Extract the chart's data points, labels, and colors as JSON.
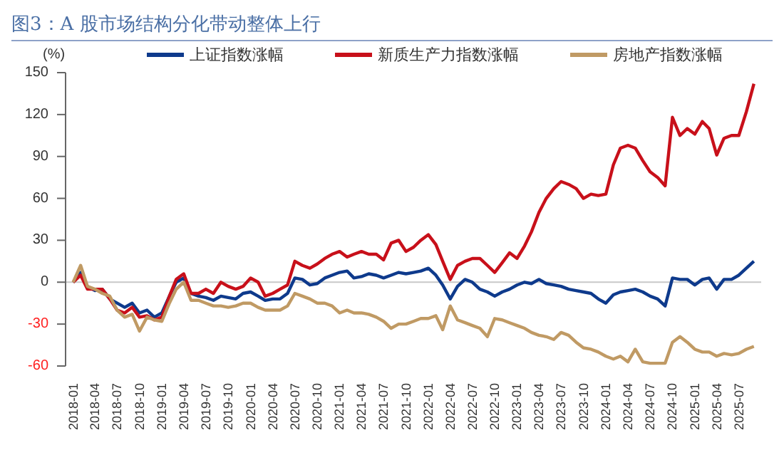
{
  "chart_data": {
    "type": "line",
    "title": "图3：A 股市场结构分化带动整体上行",
    "ylabel": "(%)",
    "x": [
      "2018-01",
      "2018-02",
      "2018-03",
      "2018-04",
      "2018-05",
      "2018-06",
      "2018-07",
      "2018-08",
      "2018-09",
      "2018-10",
      "2018-11",
      "2018-12",
      "2019-01",
      "2019-02",
      "2019-03",
      "2019-04",
      "2019-05",
      "2019-06",
      "2019-07",
      "2019-08",
      "2019-09",
      "2019-10",
      "2019-11",
      "2019-12",
      "2020-01",
      "2020-02",
      "2020-03",
      "2020-04",
      "2020-05",
      "2020-06",
      "2020-07",
      "2020-08",
      "2020-09",
      "2020-10",
      "2020-11",
      "2020-12",
      "2021-01",
      "2021-02",
      "2021-03",
      "2021-04",
      "2021-05",
      "2021-06",
      "2021-07",
      "2021-08",
      "2021-09",
      "2021-10",
      "2021-11",
      "2021-12",
      "2022-01",
      "2022-02",
      "2022-03",
      "2022-04",
      "2022-05",
      "2022-06",
      "2022-07",
      "2022-08",
      "2022-09",
      "2022-10",
      "2022-11",
      "2022-12",
      "2023-01",
      "2023-02",
      "2023-03",
      "2023-04",
      "2023-05",
      "2023-06",
      "2023-07",
      "2023-08",
      "2023-09",
      "2023-10",
      "2023-11",
      "2023-12",
      "2024-01",
      "2024-02",
      "2024-03",
      "2024-04",
      "2024-05",
      "2024-06",
      "2024-07",
      "2024-08",
      "2024-09",
      "2024-10",
      "2024-11",
      "2024-12",
      "2025-01",
      "2025-02",
      "2025-03",
      "2025-04",
      "2025-05",
      "2025-06",
      "2025-07",
      "2025-08",
      "2025-09"
    ],
    "series": [
      {
        "name": "上证指数涨幅",
        "color": "#0e3a8c",
        "values": [
          0,
          7,
          -3,
          -6,
          -5,
          -12,
          -15,
          -18,
          -15,
          -22,
          -20,
          -25,
          -22,
          -10,
          0,
          3,
          -8,
          -10,
          -11,
          -13,
          -10,
          -11,
          -12,
          -8,
          -7,
          -10,
          -13,
          -12,
          -12,
          -8,
          3,
          2,
          -2,
          -1,
          3,
          5,
          7,
          8,
          3,
          4,
          6,
          5,
          3,
          5,
          7,
          6,
          7,
          8,
          10,
          5,
          -2,
          -12,
          -3,
          2,
          0,
          -5,
          -7,
          -10,
          -7,
          -5,
          -2,
          0,
          -1,
          2,
          -1,
          -2,
          -3,
          -5,
          -6,
          -7,
          -8,
          -12,
          -15,
          -9,
          -7,
          -6,
          -5,
          -7,
          -10,
          -12,
          -17,
          3,
          2,
          2,
          -2,
          2,
          3,
          -5,
          2,
          2,
          5,
          10,
          15
        ]
      },
      {
        "name": "新质生产力指数涨幅",
        "color": "#c8101a",
        "values": [
          0,
          5,
          -5,
          -5,
          -5,
          -12,
          -20,
          -22,
          -18,
          -25,
          -24,
          -27,
          -25,
          -10,
          2,
          6,
          -8,
          -8,
          -5,
          -8,
          0,
          -3,
          -5,
          -3,
          3,
          0,
          -10,
          -8,
          -5,
          -2,
          15,
          12,
          10,
          13,
          17,
          20,
          22,
          18,
          20,
          22,
          20,
          20,
          16,
          28,
          30,
          22,
          25,
          30,
          34,
          27,
          15,
          2,
          12,
          15,
          17,
          17,
          12,
          7,
          14,
          21,
          17,
          26,
          36,
          50,
          60,
          67,
          72,
          70,
          67,
          60,
          63,
          62,
          63,
          84,
          96,
          98,
          96,
          87,
          79,
          75,
          69,
          118,
          105,
          110,
          106,
          115,
          110,
          91,
          103,
          105,
          105,
          122,
          142
        ]
      },
      {
        "name": "房地产指数涨幅",
        "color": "#c09a64",
        "values": [
          0,
          12,
          -3,
          -5,
          -8,
          -10,
          -20,
          -25,
          -23,
          -35,
          -25,
          -27,
          -28,
          -15,
          -5,
          0,
          -13,
          -13,
          -15,
          -17,
          -17,
          -18,
          -17,
          -15,
          -15,
          -18,
          -20,
          -20,
          -20,
          -17,
          -8,
          -10,
          -12,
          -15,
          -15,
          -17,
          -22,
          -20,
          -22,
          -22,
          -23,
          -25,
          -28,
          -33,
          -30,
          -30,
          -28,
          -26,
          -26,
          -24,
          -34,
          -17,
          -27,
          -29,
          -31,
          -33,
          -39,
          -26,
          -27,
          -29,
          -31,
          -33,
          -36,
          -38,
          -39,
          -41,
          -36,
          -38,
          -43,
          -47,
          -48,
          -50,
          -53,
          -55,
          -53,
          -57,
          -48,
          -57,
          -58,
          -58,
          -58,
          -43,
          -39,
          -43,
          -48,
          -50,
          -50,
          -53,
          -51,
          -52,
          -51,
          -48,
          -46
        ]
      }
    ],
    "xlim": [
      "2017-12",
      "2025-10"
    ],
    "xticks": [
      "2018-01",
      "2018-04",
      "2018-07",
      "2018-10",
      "2019-01",
      "2019-04",
      "2019-07",
      "2019-10",
      "2020-01",
      "2020-04",
      "2020-07",
      "2020-10",
      "2021-01",
      "2021-04",
      "2021-07",
      "2021-10",
      "2022-01",
      "2022-04",
      "2022-07",
      "2022-10",
      "2023-01",
      "2023-04",
      "2023-07",
      "2023-10",
      "2024-01",
      "2024-04",
      "2024-07",
      "2024-10",
      "2025-01",
      "2025-04",
      "2025-07"
    ],
    "ylim": [
      -60,
      150
    ],
    "yticks": [
      -60,
      -30,
      0,
      30,
      60,
      90,
      120,
      150
    ],
    "ref_lines": [
      {
        "axis": "y",
        "value": 0,
        "color": "#c8c8c8"
      }
    ],
    "grid": false,
    "legend": "top",
    "marker": "none",
    "line_style": "solid"
  }
}
